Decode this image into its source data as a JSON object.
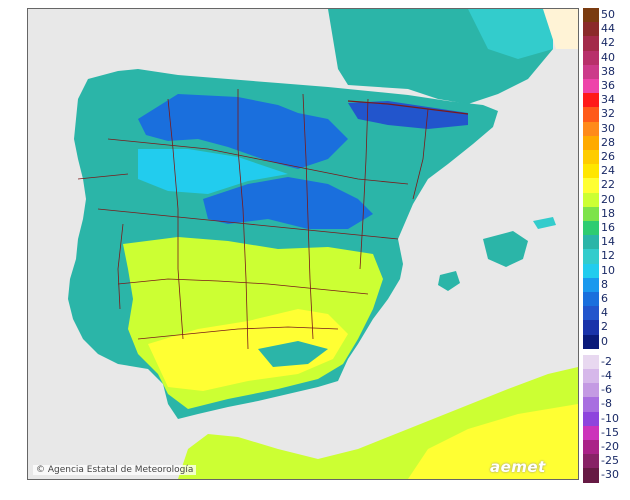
{
  "credit": "Agencia Estatal de Meteorología",
  "logo_text": "aemet",
  "legend": {
    "positive": [
      {
        "label": "50",
        "color": "#7a3b10"
      },
      {
        "label": "44",
        "color": "#8b2a2a"
      },
      {
        "label": "42",
        "color": "#a32a4a"
      },
      {
        "label": "40",
        "color": "#b8306a"
      },
      {
        "label": "38",
        "color": "#cc3a8a"
      },
      {
        "label": "36",
        "color": "#ee44aa"
      },
      {
        "label": "34",
        "color": "#ff1a1a"
      },
      {
        "label": "32",
        "color": "#ff5a1a"
      },
      {
        "label": "30",
        "color": "#ff8a1a"
      },
      {
        "label": "28",
        "color": "#ffaa00"
      },
      {
        "label": "26",
        "color": "#ffcc00"
      },
      {
        "label": "24",
        "color": "#ffe600"
      },
      {
        "label": "22",
        "color": "#ffff33"
      },
      {
        "label": "20",
        "color": "#ccff33"
      },
      {
        "label": "18",
        "color": "#7de34a"
      },
      {
        "label": "16",
        "color": "#2ecc71"
      },
      {
        "label": "14",
        "color": "#2bb5a8"
      },
      {
        "label": "12",
        "color": "#33cccc"
      },
      {
        "label": "10",
        "color": "#22ccee"
      },
      {
        "label": "8",
        "color": "#1a99ee"
      },
      {
        "label": "6",
        "color": "#1a6fdd"
      },
      {
        "label": "4",
        "color": "#2255cc"
      },
      {
        "label": "2",
        "color": "#1a33aa"
      },
      {
        "label": "0",
        "color": "#0a1a7a"
      }
    ],
    "negative": [
      {
        "label": "-2",
        "color": "#e8d8f0"
      },
      {
        "label": "-4",
        "color": "#d6b8ea"
      },
      {
        "label": "-6",
        "color": "#c49ae3"
      },
      {
        "label": "-8",
        "color": "#a86ee0"
      },
      {
        "label": "-10",
        "color": "#8e44dd"
      },
      {
        "label": "-15",
        "color": "#cc33bb"
      },
      {
        "label": "-20",
        "color": "#aa2288"
      },
      {
        "label": "-25",
        "color": "#882266"
      },
      {
        "label": "-30",
        "color": "#661a44"
      }
    ]
  }
}
